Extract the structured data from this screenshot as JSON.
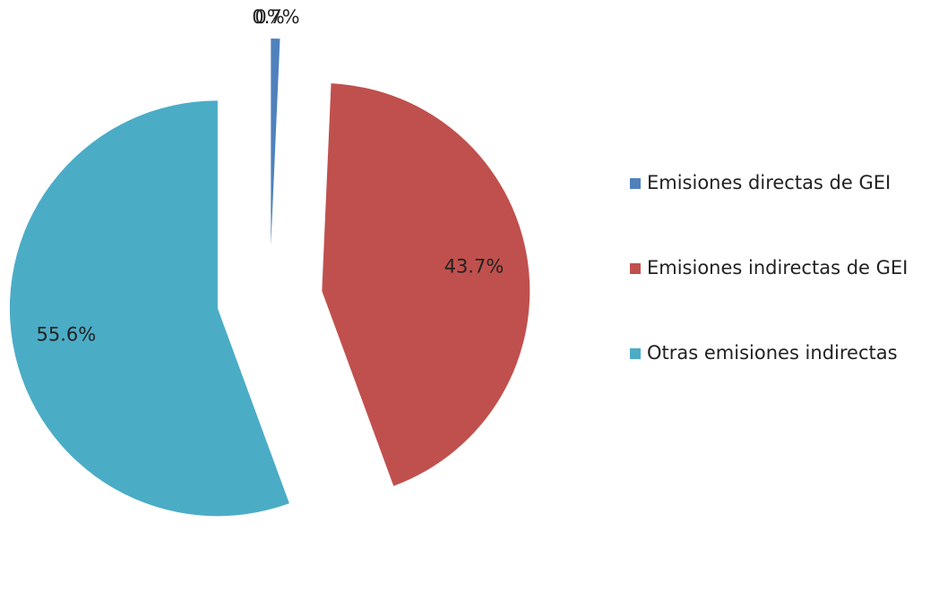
{
  "chart_data": {
    "type": "pie",
    "categories": [
      "Emisiones directas de GEI",
      "Emisiones indirectas de GEI",
      "Otras emisiones indirectas",
      null
    ],
    "values": [
      0.7,
      43.7,
      55.6,
      0
    ],
    "value_labels": [
      "0.7%",
      "43.7%",
      "55.6%",
      "0%"
    ],
    "colors": [
      "#4f81bd",
      "#c0504d",
      "#4bacc6"
    ],
    "legend": "right"
  }
}
